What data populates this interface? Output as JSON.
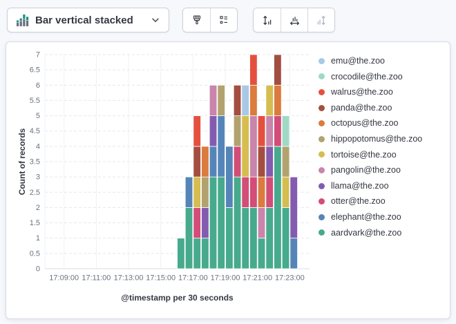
{
  "toolbar": {
    "chart_type_label": "Bar vertical stacked",
    "icons": {
      "chart_type": "bar-vertical-stacked-icon",
      "dropdown": "chevron-down-icon",
      "style": "paintbrush-icon",
      "legend_settings": "legend-values-icon",
      "left_axis": "vertical-axis-icon",
      "bottom_axis": "horizontal-axis-icon",
      "right_axis": "right-axis-icon (disabled)"
    }
  },
  "chart_data": {
    "type": "bar",
    "stacked": true,
    "orientation": "vertical",
    "ylabel": "Count of records",
    "xlabel": "@timestamp per 30 seconds",
    "ylim": [
      0,
      7
    ],
    "y_tick_step": 0.5,
    "grid": {
      "horizontal": "dashed",
      "vertical": "solid"
    },
    "legend_position": "right",
    "x_ticks": [
      "17:09:00",
      "17:11:00",
      "17:13:00",
      "17:15:00",
      "17:17:00",
      "17:19:00",
      "17:21:00",
      "17:23:00"
    ],
    "categories": [
      "17:16:00",
      "17:16:30",
      "17:17:00",
      "17:17:30",
      "17:18:00",
      "17:18:30",
      "17:19:00",
      "17:19:30",
      "17:20:00",
      "17:20:30",
      "17:21:00",
      "17:21:30",
      "17:22:00",
      "17:22:30",
      "17:23:00"
    ],
    "stack_order_note": "series listed top-to-bottom as in legend; stacking on chart is bottom-to-top in reverse of this list",
    "series": [
      {
        "name": "emu@the.zoo",
        "color": "#a7c9e5",
        "values": [
          0,
          0,
          0,
          0,
          0,
          0,
          0,
          0,
          1,
          0,
          0,
          0,
          0,
          0,
          0
        ]
      },
      {
        "name": "crocodile@the.zoo",
        "color": "#9fd9c6",
        "values": [
          0,
          0,
          0,
          0,
          0,
          0,
          0,
          0,
          0,
          0,
          0,
          0,
          0,
          1,
          0
        ]
      },
      {
        "name": "walrus@the.zoo",
        "color": "#e5503e",
        "values": [
          0,
          0,
          1,
          0,
          0,
          0,
          0,
          0,
          0,
          1,
          1,
          0,
          0,
          0,
          0
        ]
      },
      {
        "name": "panda@the.zoo",
        "color": "#a34e41",
        "values": [
          0,
          0,
          1,
          0,
          0,
          0,
          0,
          1,
          0,
          0,
          1,
          0,
          1,
          0,
          0
        ]
      },
      {
        "name": "octopus@the.zoo",
        "color": "#db7b3e",
        "values": [
          0,
          0,
          0,
          1,
          0,
          0,
          0,
          0,
          0,
          1,
          1,
          0,
          1,
          0,
          0
        ]
      },
      {
        "name": "hippopotomus@the.zoo",
        "color": "#b2a26f",
        "values": [
          0,
          0,
          0,
          1,
          0,
          1,
          0,
          1,
          0,
          0,
          0,
          0,
          0,
          1,
          0
        ]
      },
      {
        "name": "tortoise@the.zoo",
        "color": "#d5bd4f",
        "values": [
          0,
          0,
          1,
          0,
          0,
          0,
          0,
          0,
          2,
          0,
          0,
          1,
          0,
          1,
          0
        ]
      },
      {
        "name": "pangolin@the.zoo",
        "color": "#c985ac",
        "values": [
          0,
          0,
          0,
          0,
          1,
          0,
          0,
          0,
          0,
          2,
          1,
          1,
          0,
          0,
          0
        ]
      },
      {
        "name": "llama@the.zoo",
        "color": "#835cb0",
        "values": [
          0,
          0,
          0,
          1,
          1,
          0,
          0,
          0,
          0,
          0,
          0,
          1,
          0,
          0,
          2
        ]
      },
      {
        "name": "otter@the.zoo",
        "color": "#d24d77",
        "values": [
          0,
          0,
          1,
          0,
          0,
          0,
          0,
          1,
          1,
          1,
          0,
          1,
          1,
          0,
          0
        ]
      },
      {
        "name": "elephant@the.zoo",
        "color": "#5585b8",
        "values": [
          0,
          1,
          0,
          0,
          1,
          2,
          2,
          0,
          0,
          0,
          0,
          0,
          0,
          0,
          1
        ]
      },
      {
        "name": "aardvark@the.zoo",
        "color": "#47aa8d",
        "values": [
          1,
          2,
          1,
          1,
          3,
          3,
          2,
          3,
          2,
          2,
          1,
          2,
          4,
          2,
          0
        ]
      }
    ]
  }
}
